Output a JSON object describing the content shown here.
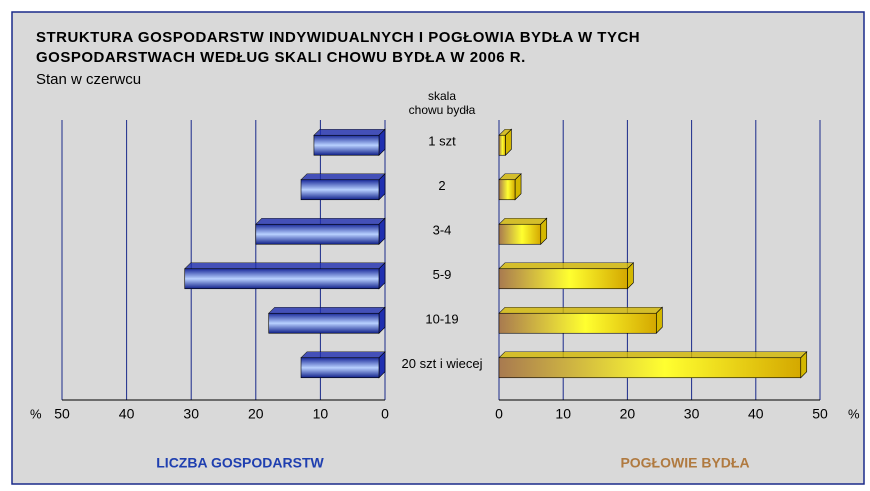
{
  "chart_data": {
    "type": "butterfly-bar",
    "title": [
      "STRUKTURA GOSPODARSTW INDYWIDUALNYCH I POGŁOWIA BYDŁA W TYCH",
      "GOSPODARSTWACH WEDŁUG SKALI CHOWU BYDŁA W 2006 R."
    ],
    "subtitle": "Stan w czerwcu",
    "category_axis_label": [
      "skala",
      "chowu bydła"
    ],
    "unit": "%",
    "categories": [
      "1 szt",
      "2",
      "3-4",
      "5-9",
      "10-19",
      "20 szt i wiecej"
    ],
    "grid": true,
    "series": [
      {
        "name": "LICZBA GOSPODARSTW",
        "color": "#1f2fb0",
        "values": [
          11,
          13,
          20,
          31,
          18,
          13
        ],
        "xlim": [
          0,
          50
        ],
        "xticks": [
          0,
          10,
          20,
          30,
          40,
          50
        ]
      },
      {
        "name": "POGŁOWIE BYDŁA",
        "color": "#d4b800",
        "values": [
          1,
          2.5,
          6.5,
          20,
          24.5,
          47
        ],
        "xlim": [
          0,
          50
        ],
        "xticks": [
          0,
          10,
          20,
          30,
          40,
          50
        ]
      }
    ]
  }
}
